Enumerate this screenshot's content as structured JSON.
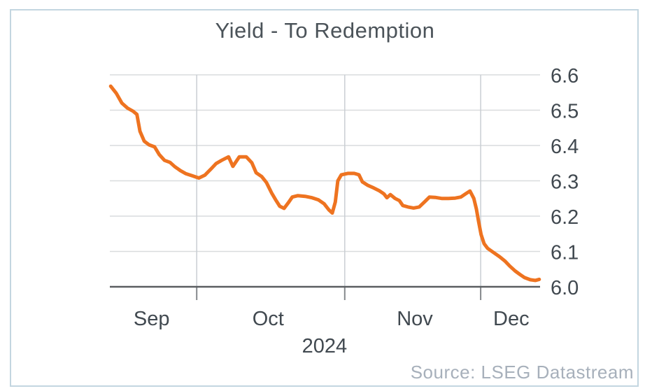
{
  "chart_data": {
    "type": "line",
    "title": "Yield - To Redemption",
    "source": "Source: LSEG Datastream",
    "grid": true,
    "legend": "none",
    "y_axis": {
      "side": "right",
      "min": 6.0,
      "max": 6.6,
      "step": 0.1,
      "tick_values": [
        6.6,
        6.5,
        6.4,
        6.3,
        6.2,
        6.1,
        6.0
      ],
      "tick_labels": [
        "6.6",
        "6.5",
        "6.4",
        "6.3",
        "6.2",
        "6.1",
        "6.0"
      ]
    },
    "x_axis": {
      "tick_labels": [
        "Sep",
        "Oct",
        "Nov",
        "Dec"
      ],
      "label_positions": [
        0.097,
        0.368,
        0.709,
        0.933
      ],
      "boundary_ticks": [
        0.202,
        0.546,
        0.862
      ],
      "year_label": "2024",
      "year_position": 0.499
    },
    "series": [
      {
        "name": "Yield - To Redemption",
        "color": "#ee7320",
        "points": [
          [
            0.002,
            6.568
          ],
          [
            0.015,
            6.548
          ],
          [
            0.028,
            6.52
          ],
          [
            0.041,
            6.506
          ],
          [
            0.054,
            6.497
          ],
          [
            0.063,
            6.488
          ],
          [
            0.07,
            6.44
          ],
          [
            0.08,
            6.412
          ],
          [
            0.091,
            6.402
          ],
          [
            0.104,
            6.396
          ],
          [
            0.115,
            6.374
          ],
          [
            0.127,
            6.358
          ],
          [
            0.14,
            6.352
          ],
          [
            0.151,
            6.34
          ],
          [
            0.164,
            6.329
          ],
          [
            0.177,
            6.32
          ],
          [
            0.192,
            6.314
          ],
          [
            0.207,
            6.308
          ],
          [
            0.221,
            6.316
          ],
          [
            0.234,
            6.332
          ],
          [
            0.247,
            6.349
          ],
          [
            0.26,
            6.358
          ],
          [
            0.276,
            6.368
          ],
          [
            0.286,
            6.341
          ],
          [
            0.301,
            6.368
          ],
          [
            0.317,
            6.368
          ],
          [
            0.33,
            6.351
          ],
          [
            0.34,
            6.323
          ],
          [
            0.353,
            6.312
          ],
          [
            0.364,
            6.295
          ],
          [
            0.376,
            6.266
          ],
          [
            0.385,
            6.247
          ],
          [
            0.395,
            6.228
          ],
          [
            0.405,
            6.222
          ],
          [
            0.415,
            6.238
          ],
          [
            0.424,
            6.254
          ],
          [
            0.437,
            6.258
          ],
          [
            0.454,
            6.256
          ],
          [
            0.47,
            6.252
          ],
          [
            0.485,
            6.246
          ],
          [
            0.498,
            6.235
          ],
          [
            0.509,
            6.218
          ],
          [
            0.517,
            6.209
          ],
          [
            0.524,
            6.24
          ],
          [
            0.53,
            6.3
          ],
          [
            0.538,
            6.317
          ],
          [
            0.553,
            6.321
          ],
          [
            0.568,
            6.321
          ],
          [
            0.579,
            6.317
          ],
          [
            0.587,
            6.297
          ],
          [
            0.6,
            6.287
          ],
          [
            0.613,
            6.28
          ],
          [
            0.626,
            6.272
          ],
          [
            0.637,
            6.263
          ],
          [
            0.644,
            6.252
          ],
          [
            0.652,
            6.261
          ],
          [
            0.663,
            6.25
          ],
          [
            0.673,
            6.244
          ],
          [
            0.681,
            6.23
          ],
          [
            0.693,
            6.226
          ],
          [
            0.706,
            6.223
          ],
          [
            0.719,
            6.226
          ],
          [
            0.732,
            6.241
          ],
          [
            0.743,
            6.254
          ],
          [
            0.756,
            6.253
          ],
          [
            0.771,
            6.25
          ],
          [
            0.787,
            6.25
          ],
          [
            0.803,
            6.251
          ],
          [
            0.816,
            6.254
          ],
          [
            0.828,
            6.264
          ],
          [
            0.837,
            6.271
          ],
          [
            0.846,
            6.25
          ],
          [
            0.852,
            6.22
          ],
          [
            0.857,
            6.185
          ],
          [
            0.863,
            6.148
          ],
          [
            0.87,
            6.122
          ],
          [
            0.878,
            6.109
          ],
          [
            0.893,
            6.096
          ],
          [
            0.906,
            6.085
          ],
          [
            0.919,
            6.072
          ],
          [
            0.93,
            6.058
          ],
          [
            0.942,
            6.045
          ],
          [
            0.953,
            6.035
          ],
          [
            0.964,
            6.026
          ],
          [
            0.977,
            6.02
          ],
          [
            0.989,
            6.018
          ],
          [
            0.998,
            6.021
          ]
        ]
      }
    ],
    "colors": {
      "line": "#ee7320",
      "grid": "#d9dcde",
      "vgrid": "#c9ced3",
      "axis": "#5a5e61",
      "tick": "#85898d",
      "label": "#414950",
      "title": "#4b5359",
      "source": "#a7b0bb",
      "frame": "#c3d6e0"
    }
  }
}
